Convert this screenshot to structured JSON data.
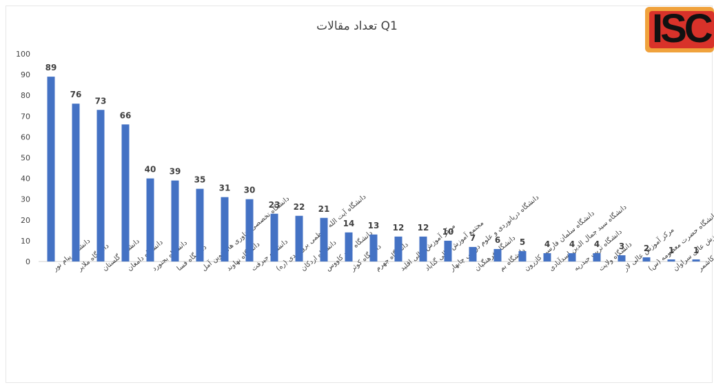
{
  "logo": {
    "text": "ISC"
  },
  "chart_data": {
    "type": "bar",
    "title": "تعداد مقالات Q1",
    "xlabel": "",
    "ylabel": "",
    "ylim": [
      0,
      100
    ],
    "yticks": [
      "0",
      "10",
      "20",
      "30",
      "40",
      "50",
      "60",
      "70",
      "80",
      "90",
      "100"
    ],
    "grid": false,
    "legend": "none",
    "bar_color": "#4472c4",
    "categories": [
      "دانشگاه پیام نور",
      "دانشگاه ملایر",
      "دانشگاه گلستان",
      "دانشگاه دامغان",
      "دانشگاه بجنورد",
      "دانشگاه فسا",
      "دانشگاه تخصصی فناوری های نوین آمل",
      "دانشگاه نهاوند",
      "دانشگاه جیرفت",
      "دانشگاه آیت الله العظمی بروجردی (ره)",
      "دانشگاه اردکان",
      "دانشگاه گنبد کاووس",
      "دانشگاه کوثر",
      "دانشگاه جهرم",
      "مرکز آموزش عالی اقلید",
      "مجتمع آموزش عالی گناباد",
      "دانشگاه دریانوردی و علوم دریایی چابهار",
      "دانشگاه فرهنگیان",
      "دانشگاه بم",
      "دانشگاه سلمان فارسی کازرون",
      "دانشگاه سید جمال الدین اسدآبادی",
      "دانشگاه تربت حیدریه",
      "دانشگاه ولایت",
      "مرکز آموزش عالی لار",
      "دانشگاه حضرت معصومه (س)",
      "مجتمع آموزش عالی سراوان",
      "مرکز آموزش عالی کاشمر"
    ],
    "values": [
      89,
      76,
      73,
      66,
      40,
      39,
      35,
      31,
      30,
      23,
      22,
      21,
      14,
      13,
      12,
      12,
      10,
      7,
      6,
      5,
      4,
      4,
      4,
      3,
      2,
      1,
      1
    ]
  }
}
